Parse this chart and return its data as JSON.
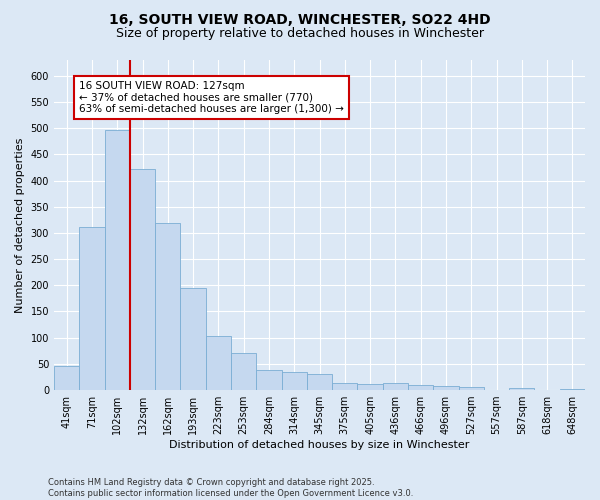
{
  "title_line1": "16, SOUTH VIEW ROAD, WINCHESTER, SO22 4HD",
  "title_line2": "Size of property relative to detached houses in Winchester",
  "xlabel": "Distribution of detached houses by size in Winchester",
  "ylabel": "Number of detached properties",
  "categories": [
    "41sqm",
    "71sqm",
    "102sqm",
    "132sqm",
    "162sqm",
    "193sqm",
    "223sqm",
    "253sqm",
    "284sqm",
    "314sqm",
    "345sqm",
    "375sqm",
    "405sqm",
    "436sqm",
    "466sqm",
    "496sqm",
    "527sqm",
    "557sqm",
    "587sqm",
    "618sqm",
    "648sqm"
  ],
  "values": [
    46,
    312,
    497,
    422,
    319,
    194,
    104,
    70,
    38,
    35,
    30,
    13,
    12,
    14,
    10,
    8,
    5,
    0,
    4,
    0,
    3
  ],
  "bar_color": "#c5d8ef",
  "bar_edge_color": "#7aadd4",
  "vline_x_index": 2,
  "vline_color": "#cc0000",
  "annotation_text": "16 SOUTH VIEW ROAD: 127sqm\n← 37% of detached houses are smaller (770)\n63% of semi-detached houses are larger (1,300) →",
  "annotation_box_color": "#ffffff",
  "annotation_box_edge": "#cc0000",
  "annotation_fontsize": 7.5,
  "ylim": [
    0,
    630
  ],
  "yticks": [
    0,
    50,
    100,
    150,
    200,
    250,
    300,
    350,
    400,
    450,
    500,
    550,
    600
  ],
  "background_color": "#dce8f5",
  "plot_bg_color": "#dce8f5",
  "grid_color": "#ffffff",
  "footer_text": "Contains HM Land Registry data © Crown copyright and database right 2025.\nContains public sector information licensed under the Open Government Licence v3.0.",
  "title_fontsize": 10,
  "subtitle_fontsize": 9,
  "tick_fontsize": 7,
  "axis_label_fontsize": 8
}
